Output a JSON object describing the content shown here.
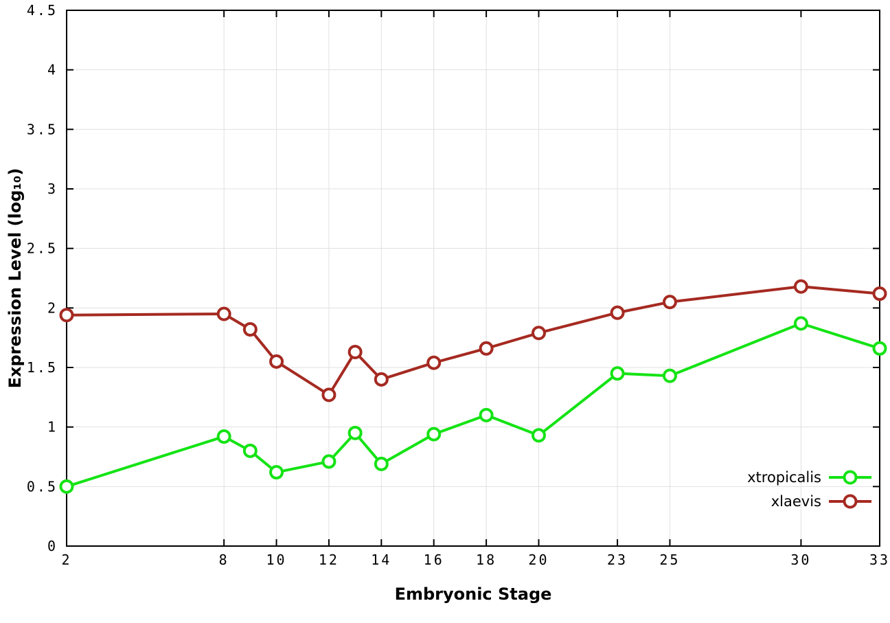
{
  "chart_data": {
    "type": "line",
    "title": "",
    "xlabel": "Embryonic Stage",
    "ylabel": "Expression Level (log₁₀)",
    "xlim": [
      2,
      33
    ],
    "ylim": [
      0,
      4.5
    ],
    "xticks": [
      2,
      8,
      10,
      12,
      14,
      16,
      18,
      20,
      23,
      25,
      30,
      33
    ],
    "yticks": [
      0,
      0.5,
      1,
      1.5,
      2,
      2.5,
      3,
      3.5,
      4,
      4.5
    ],
    "ytick_labels": [
      "0",
      "0.5",
      "1",
      "1.5",
      "2",
      "2.5",
      "3",
      "3.5",
      "4",
      "4.5"
    ],
    "grid": true,
    "legend_position": "bottom-right-inside",
    "x": [
      2,
      8,
      9,
      10,
      12,
      13,
      14,
      16,
      18,
      20,
      23,
      25,
      30,
      33
    ],
    "series": [
      {
        "name": "xtropicalis",
        "color": "#15e315",
        "values": [
          0.5,
          0.92,
          0.8,
          0.62,
          0.71,
          0.95,
          0.69,
          0.94,
          1.1,
          0.93,
          1.45,
          1.43,
          1.87,
          1.66
        ]
      },
      {
        "name": "xlaevis",
        "color": "#a52a21",
        "values": [
          1.94,
          1.95,
          1.82,
          1.55,
          1.27,
          1.63,
          1.4,
          1.54,
          1.66,
          1.79,
          1.96,
          2.05,
          2.18,
          2.12
        ]
      }
    ],
    "colors": {
      "grid": "#e0e0e0",
      "axis": "#000000",
      "background": "#ffffff",
      "marker_fill": "#ffffff"
    }
  }
}
